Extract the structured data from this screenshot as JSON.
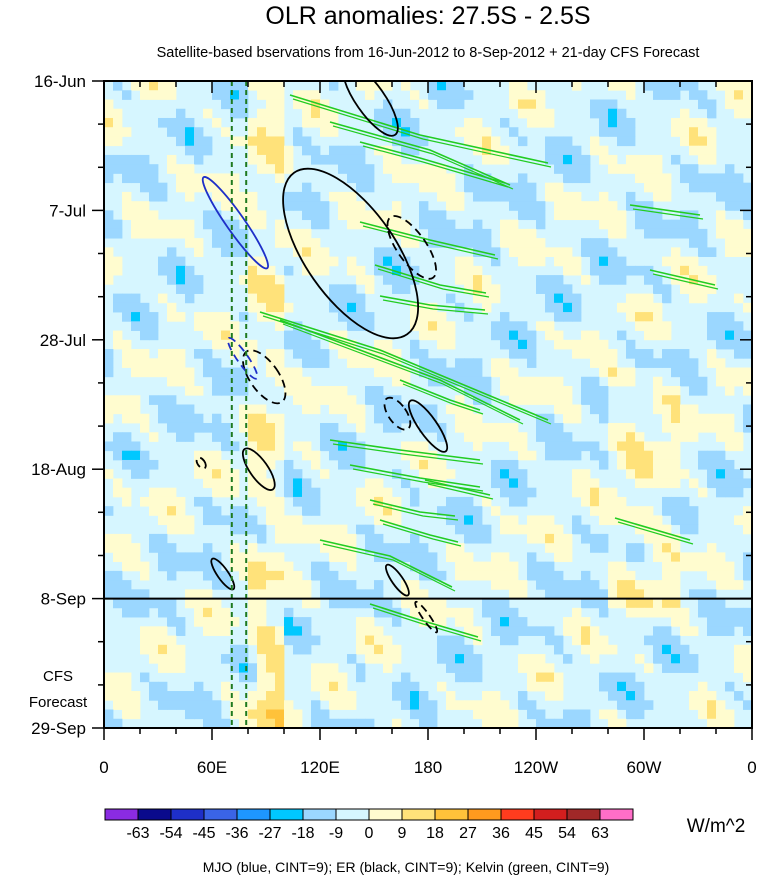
{
  "chart_data": {
    "type": "heatmap",
    "title": "OLR anomalies: 27.5S - 2.5S",
    "subtitle": "Satellite-based bservations from 16-Jun-2012 to 8-Sep-2012 + 21-day CFS Forecast",
    "x_tick_labels": [
      "0",
      "60E",
      "120E",
      "180",
      "120W",
      "60W",
      "0"
    ],
    "x_ticks_deg": [
      0,
      60,
      120,
      180,
      240,
      300,
      360
    ],
    "xlim_deg": [
      0,
      360
    ],
    "y_tick_labels": [
      "16-Jun",
      "7-Jul",
      "28-Jul",
      "18-Aug",
      "8-Sep",
      "29-Sep"
    ],
    "y_ticks_day": [
      0,
      21,
      42,
      63,
      84,
      105
    ],
    "ylim_day": [
      0,
      105
    ],
    "observation_end_label": "8-Sep",
    "observation_end_day": 84,
    "forecast_label_lines": [
      "CFS",
      "Forecast"
    ],
    "colorbar": {
      "labels": [
        "-63",
        "-54",
        "-45",
        "-36",
        "-27",
        "-18",
        "-9",
        "0",
        "9",
        "18",
        "27",
        "36",
        "45",
        "54",
        "63"
      ],
      "colors": [
        "#8a2be2",
        "#0a0a8c",
        "#1e2fc8",
        "#3a64e6",
        "#1e96ff",
        "#00c8ff",
        "#9bd7ff",
        "#d6f6ff",
        "#fffccf",
        "#ffe27a",
        "#ffc23a",
        "#ff9a1e",
        "#ff3c1e",
        "#d21e1e",
        "#a02828",
        "#ff6ec8"
      ],
      "units": "W/m^2"
    },
    "legend_note": "MJO (blue, CINT=9); ER (black, CINT=9); Kelvin (green, CINT=9)",
    "reference_lines_deg": [
      71,
      79
    ],
    "contour_colors": {
      "mjo": "#1e2fc8",
      "er": "#000000",
      "kelvin": "#22cc22"
    },
    "er_contours": [
      {
        "lon": 148,
        "day": 3,
        "dlon": 8,
        "dday": 7,
        "style": "solid"
      },
      {
        "lon": 137,
        "day": 28,
        "dlon": 25,
        "dday": 16,
        "style": "solid"
      },
      {
        "lon": 171,
        "day": 27,
        "dlon": 8,
        "dday": 6,
        "style": "dashed"
      },
      {
        "lon": 89,
        "day": 48,
        "dlon": 8,
        "dday": 5,
        "style": "dashed"
      },
      {
        "lon": 180,
        "day": 56,
        "dlon": 5,
        "dday": 5,
        "style": "solid"
      },
      {
        "lon": 163,
        "day": 54,
        "dlon": 5,
        "dday": 3,
        "style": "dashed"
      },
      {
        "lon": 86,
        "day": 63,
        "dlon": 5,
        "dday": 4,
        "style": "solid"
      },
      {
        "lon": 54,
        "day": 62,
        "dlon": 2,
        "dday": 1,
        "style": "dashed"
      },
      {
        "lon": 66,
        "day": 80,
        "dlon": 3,
        "dday": 3,
        "style": "solid"
      },
      {
        "lon": 163,
        "day": 81,
        "dlon": 3,
        "dday": 3,
        "style": "solid"
      },
      {
        "lon": 179,
        "day": 87,
        "dlon": 2,
        "dday": 3,
        "style": "dashed"
      }
    ],
    "mjo_contours": [
      {
        "lon": 73,
        "day": 23,
        "dlon": 5,
        "dday": 9,
        "style": "solid"
      },
      {
        "lon": 77,
        "day": 45,
        "dlon": 3,
        "dday": 4,
        "style": "dashed"
      }
    ]
  }
}
